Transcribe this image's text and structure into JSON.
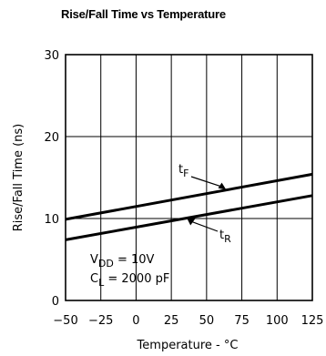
{
  "chart_data": {
    "type": "line",
    "title": "Rise/Fall Time vs Temperature",
    "xlabel": "Temperature - °C",
    "ylabel": "Rise/Fall Time (ns)",
    "xlim": [
      -50,
      125
    ],
    "ylim": [
      0,
      30
    ],
    "xticks": [
      -50,
      -25,
      0,
      25,
      50,
      75,
      100,
      125
    ],
    "yticks": [
      0,
      10,
      20,
      30
    ],
    "grid": true,
    "series": [
      {
        "name": "tF",
        "main": "t",
        "sub": "F",
        "x": [
          -50,
          125
        ],
        "y": [
          9.9,
          15.4
        ]
      },
      {
        "name": "tR",
        "main": "t",
        "sub": "R",
        "x": [
          -50,
          125
        ],
        "y": [
          7.4,
          12.8
        ]
      }
    ],
    "conditions": [
      {
        "main": "V",
        "sub": "DD",
        "value": "= 10V"
      },
      {
        "main": "C",
        "sub": "L",
        "value": "= 2000 pF"
      }
    ]
  }
}
